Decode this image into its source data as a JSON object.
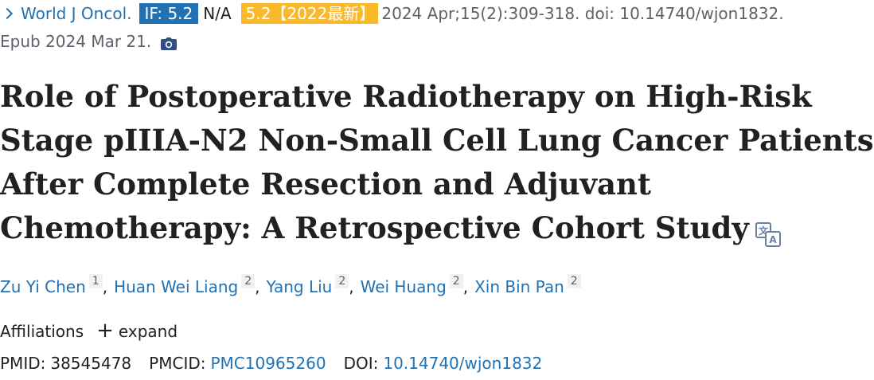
{
  "citation_line": {
    "journal": "World J Oncol.",
    "impact_factor_badge": "IF: 5.2",
    "na_text": "N/A",
    "category_badge": "5.2【2022最新】",
    "citation_text": "2024 Apr;15(2):309-318. doi: 10.14740/wjon1832.",
    "epub_text": "Epub 2024 Mar 21.",
    "colors": {
      "link": "#2271b3",
      "if_badge_bg": "#2271b3",
      "category_badge_bg": "#f9b92b",
      "muted_text": "#5b616b"
    }
  },
  "title_lines": [
    "Role of Postoperative Radiotherapy on High-Risk",
    "Stage pIIIA-N2 Non-Small Cell Lung Cancer Patients",
    "After Complete Resection and Adjuvant",
    "Chemotherapy: A Retrospective Cohort Study"
  ],
  "icons": {
    "chevron": "chevron-right-icon",
    "camera": "camera-icon",
    "translate": "translate-icon"
  },
  "authors": [
    {
      "name": "Zu Yi Chen",
      "affiliation": "1"
    },
    {
      "name": "Huan Wei Liang",
      "affiliation": "2"
    },
    {
      "name": "Yang Liu",
      "affiliation": "2"
    },
    {
      "name": "Wei Huang",
      "affiliation": "2"
    },
    {
      "name": "Xin Bin Pan",
      "affiliation": "2"
    }
  ],
  "author_separator": ",",
  "affiliations": {
    "label": "Affiliations",
    "plus": "+",
    "expand_label": "expand"
  },
  "identifiers": {
    "pmid_label": "PMID:",
    "pmid_value": "38545478",
    "pmcid_label": "PMCID:",
    "pmcid_value": "PMC10965260",
    "doi_label": "DOI:",
    "doi_value": "10.14740/wjon1832"
  }
}
